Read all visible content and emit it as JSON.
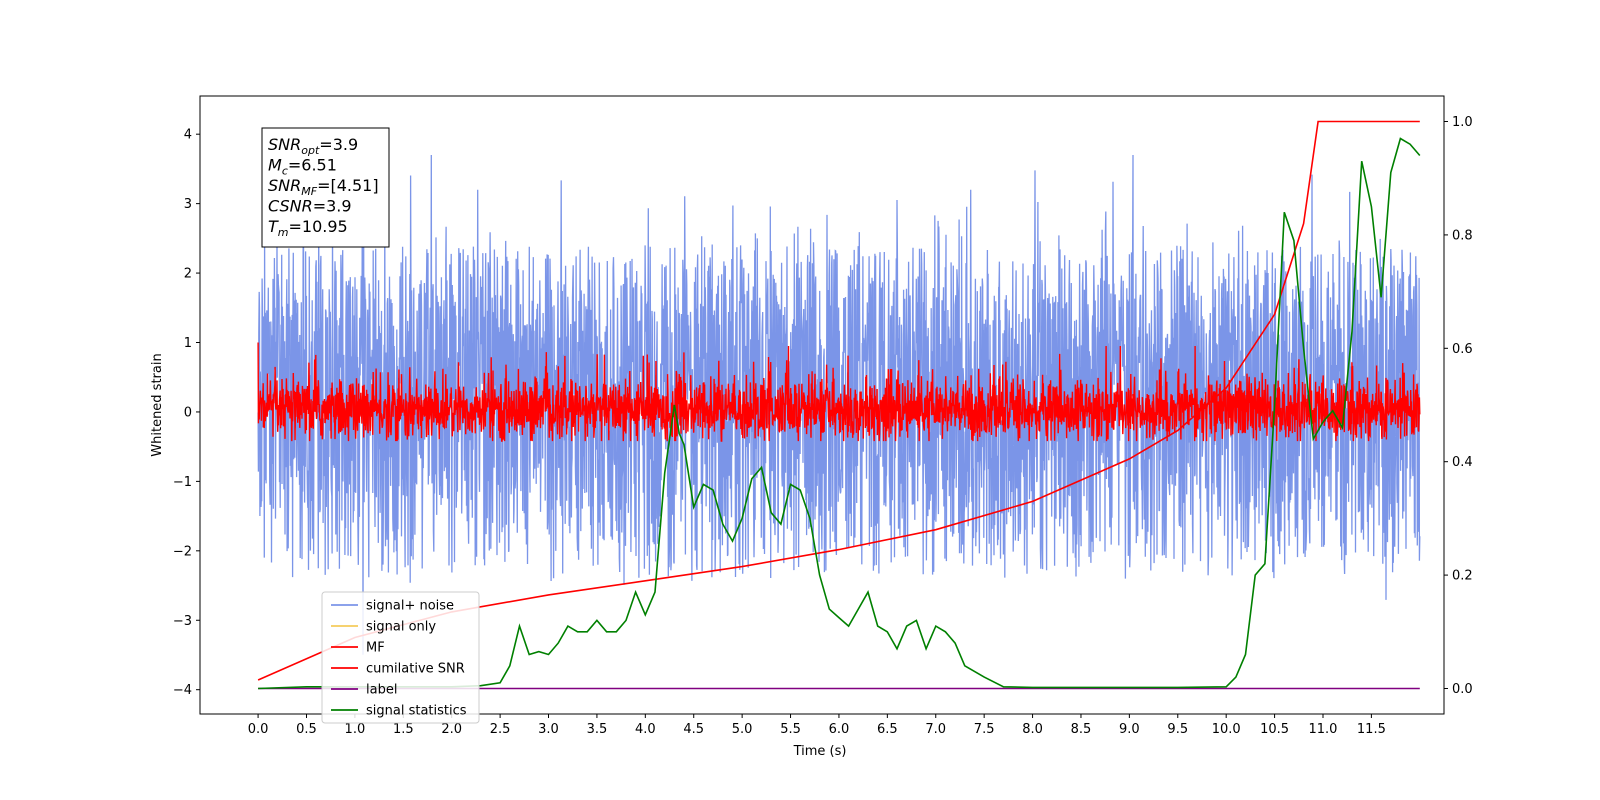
{
  "chart_data": {
    "type": "line",
    "xlabel": "Time (s)",
    "ylabel_left": "Whitened strain",
    "xlim": [
      -0.6,
      12.25
    ],
    "ylim_left": [
      -4.35,
      4.55
    ],
    "ylim_right": [
      -0.045,
      1.045
    ],
    "x_ticks": [
      "0.0",
      "0.5",
      "1.0",
      "1.5",
      "2.0",
      "2.5",
      "3.0",
      "3.5",
      "4.0",
      "4.5",
      "5.0",
      "5.5",
      "6.0",
      "6.5",
      "7.0",
      "7.5",
      "8.0",
      "8.5",
      "9.0",
      "9.5",
      "10.0",
      "10.5",
      "11.0",
      "11.5"
    ],
    "y_ticks_left": [
      "−4",
      "−3",
      "−2",
      "−1",
      "0",
      "1",
      "2",
      "3",
      "4"
    ],
    "y_ticks_right": [
      "0.0",
      "0.2",
      "0.4",
      "0.6",
      "0.8",
      "1.0"
    ],
    "grid": false,
    "annotation": [
      {
        "main": "SNR",
        "sub": "opt",
        "value": "=3.9"
      },
      {
        "main": "M",
        "sub": "c",
        "value": "=6.51"
      },
      {
        "main": "SNR",
        "sub": "MF",
        "value": "=[4.51]"
      },
      {
        "main": "CSNR",
        "sub": "",
        "value": "=3.9"
      },
      {
        "main": "T",
        "sub": "m",
        "value": "=10.95"
      }
    ],
    "legend_placement": "lower-left",
    "series": [
      {
        "name": "signal+ noise",
        "color": "#7b95e8",
        "axis": "left",
        "description": "whitened noisy strain, spans roughly -3 to +3.7 across 0 to 12 s"
      },
      {
        "name": "signal only",
        "color": "#f5cb5c",
        "axis": "left"
      },
      {
        "name": "MF",
        "color": "#ff0000",
        "axis": "left",
        "description": "matched filter output, spans roughly -0.4 to +0.9"
      },
      {
        "name": "cumilative SNR",
        "color": "#ff0000",
        "axis": "right",
        "x": [
          0.0,
          1.0,
          2.0,
          3.0,
          4.0,
          5.0,
          6.0,
          7.0,
          8.0,
          9.0,
          9.5,
          10.0,
          10.5,
          10.8,
          10.95,
          11.0,
          12.0
        ],
        "values": [
          0.015,
          0.09,
          0.135,
          0.165,
          0.19,
          0.215,
          0.245,
          0.28,
          0.33,
          0.405,
          0.455,
          0.53,
          0.66,
          0.82,
          1.0,
          1.0,
          1.0
        ]
      },
      {
        "name": "label",
        "color": "#800080",
        "axis": "right",
        "x": [
          0.0,
          12.0
        ],
        "values": [
          0.0,
          0.0
        ]
      },
      {
        "name": "signal statistics",
        "color": "#008000",
        "axis": "right",
        "x": [
          0.0,
          0.5,
          1.0,
          1.5,
          2.0,
          2.3,
          2.5,
          2.6,
          2.7,
          2.8,
          2.9,
          3.0,
          3.1,
          3.2,
          3.3,
          3.4,
          3.5,
          3.6,
          3.7,
          3.8,
          3.9,
          4.0,
          4.1,
          4.2,
          4.3,
          4.35,
          4.4,
          4.5,
          4.6,
          4.7,
          4.8,
          4.9,
          5.0,
          5.1,
          5.2,
          5.3,
          5.4,
          5.5,
          5.6,
          5.7,
          5.8,
          5.9,
          6.0,
          6.1,
          6.2,
          6.3,
          6.4,
          6.5,
          6.6,
          6.7,
          6.8,
          6.9,
          7.0,
          7.1,
          7.2,
          7.3,
          7.5,
          7.7,
          8.0,
          8.5,
          9.0,
          9.5,
          10.0,
          10.1,
          10.2,
          10.3,
          10.4,
          10.5,
          10.6,
          10.7,
          10.8,
          10.9,
          11.0,
          11.1,
          11.2,
          11.3,
          11.4,
          11.5,
          11.6,
          11.7,
          11.8,
          11.9,
          12.0
        ],
        "values": [
          0.0,
          0.003,
          0.003,
          0.003,
          0.003,
          0.005,
          0.01,
          0.04,
          0.11,
          0.06,
          0.065,
          0.06,
          0.08,
          0.11,
          0.1,
          0.1,
          0.12,
          0.1,
          0.1,
          0.12,
          0.17,
          0.13,
          0.17,
          0.38,
          0.5,
          0.45,
          0.43,
          0.32,
          0.36,
          0.35,
          0.29,
          0.26,
          0.3,
          0.37,
          0.39,
          0.31,
          0.29,
          0.36,
          0.35,
          0.3,
          0.2,
          0.14,
          0.125,
          0.11,
          0.14,
          0.17,
          0.11,
          0.1,
          0.07,
          0.11,
          0.12,
          0.07,
          0.11,
          0.1,
          0.08,
          0.04,
          0.02,
          0.003,
          0.002,
          0.002,
          0.002,
          0.002,
          0.003,
          0.02,
          0.06,
          0.2,
          0.22,
          0.5,
          0.84,
          0.79,
          0.6,
          0.44,
          0.47,
          0.49,
          0.46,
          0.63,
          0.93,
          0.85,
          0.69,
          0.91,
          0.97,
          0.96,
          0.94
        ]
      }
    ]
  }
}
